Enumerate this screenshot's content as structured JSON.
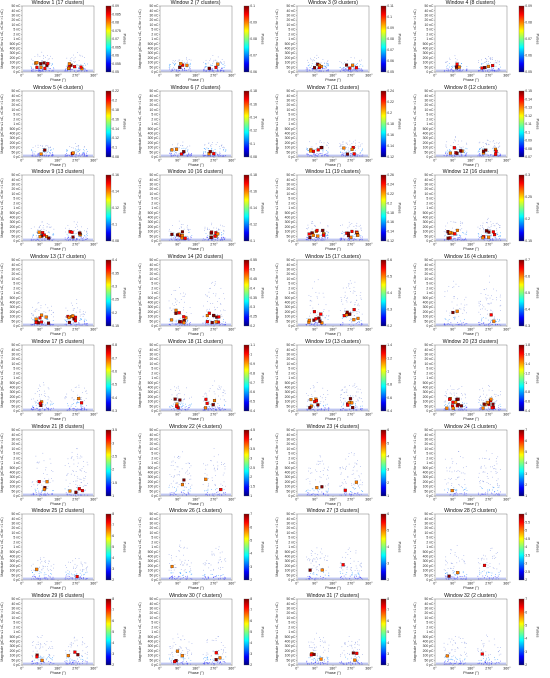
{
  "chart_data": {
    "type": "scatter",
    "layout": {
      "rows": 8,
      "cols": 4
    },
    "xlabel": "Phase (°)",
    "ylabel": "Magnitude (pC for ≤1 nC, nC for >1 nC)",
    "colorbar_label": "Pulses",
    "x_ticks": [
      "0°",
      "90°",
      "180°",
      "270°",
      "360°"
    ],
    "y_ticks": [
      "0 pC",
      "50 pC",
      "100 pC",
      "200 pC",
      "300 pC",
      "400 pC",
      "500 pC",
      "1 nC",
      "2 nC",
      "5 nC",
      "10 nC",
      "20 nC",
      "30 nC",
      "40 nC",
      "50 nC"
    ],
    "windows": [
      {
        "title": "Window 1 (17 clusters)",
        "cbar": [
          "0.05",
          "0.055",
          "0.06",
          "0.065",
          "0.07",
          "0.075",
          "0.08",
          "0.085",
          "0.09"
        ],
        "clusters": 17,
        "spread": 0.3
      },
      {
        "title": "Window 2 (7 clusters)",
        "cbar": [
          "0.06",
          "0.07",
          "0.08",
          "0.09",
          "0.1"
        ],
        "clusters": 7,
        "spread": 0.25
      },
      {
        "title": "Window 3 (9 clusters)",
        "cbar": [
          "0.05",
          "0.06",
          "0.07",
          "0.08",
          "0.09",
          "0.1",
          "0.11"
        ],
        "clusters": 9,
        "spread": 0.25
      },
      {
        "title": "Window 4 (8 clusters)",
        "cbar": [
          "0.05",
          "0.06",
          "0.07",
          "0.08",
          "0.09"
        ],
        "clusters": 8,
        "spread": 0.25
      },
      {
        "title": "Window 5 (4 clusters)",
        "cbar": [
          "0.08",
          "0.1",
          "0.12",
          "0.14",
          "0.16",
          "0.18",
          "0.2",
          "0.22"
        ],
        "clusters": 4,
        "spread": 0.2
      },
      {
        "title": "Window 6 (7 clusters)",
        "cbar": [
          "0.08",
          "0.1",
          "0.12",
          "0.14",
          "0.16",
          "0.18"
        ],
        "clusters": 7,
        "spread": 0.25
      },
      {
        "title": "Window 7 (11 clusters)",
        "cbar": [
          "0.12",
          "0.14",
          "0.16",
          "0.18",
          "0.2",
          "0.22",
          "0.24"
        ],
        "clusters": 11,
        "spread": 0.3
      },
      {
        "title": "Window 8 (12 clusters)",
        "cbar": [
          "0.07",
          "0.08",
          "0.09",
          "0.1",
          "0.11",
          "0.12",
          "0.13",
          "0.14",
          "0.15"
        ],
        "clusters": 12,
        "spread": 0.3
      },
      {
        "title": "Window 9 (13 clusters)",
        "cbar": [
          "0.08",
          "0.1",
          "0.12",
          "0.14",
          "0.16"
        ],
        "clusters": 13,
        "spread": 0.3
      },
      {
        "title": "Window 10 (16 clusters)",
        "cbar": [
          "0.1",
          "0.12",
          "0.14",
          "0.16",
          "0.18"
        ],
        "clusters": 16,
        "spread": 0.3
      },
      {
        "title": "Window 11 (19 clusters)",
        "cbar": [
          "0.12",
          "0.14",
          "0.16",
          "0.18",
          "0.2",
          "0.22",
          "0.24",
          "0.26"
        ],
        "clusters": 19,
        "spread": 0.35
      },
      {
        "title": "Window 12 (16 clusters)",
        "cbar": [
          "0.15",
          "0.2",
          "0.25",
          "0.3"
        ],
        "clusters": 16,
        "spread": 0.35
      },
      {
        "title": "Window 13 (17 clusters)",
        "cbar": [
          "0.15",
          "0.2",
          "0.25",
          "0.3",
          "0.35",
          "0.4"
        ],
        "clusters": 17,
        "spread": 0.4
      },
      {
        "title": "Window 14 (20 clusters)",
        "cbar": [
          "0.2",
          "0.25",
          "0.3",
          "0.35",
          "0.4",
          "0.45",
          "0.5",
          "0.55"
        ],
        "clusters": 20,
        "spread": 0.7
      },
      {
        "title": "Window 15 (17 clusters)",
        "cbar": [
          "0.2",
          "0.3",
          "0.4",
          "0.5",
          "0.6"
        ],
        "clusters": 17,
        "spread": 0.75
      },
      {
        "title": "Window 16 (4 clusters)",
        "cbar": [
          "0.3",
          "0.4",
          "0.5",
          "0.6",
          "0.7"
        ],
        "clusters": 4,
        "spread": 0.75
      },
      {
        "title": "Window 17 (5 clusters)",
        "cbar": [
          "0.3",
          "0.4",
          "0.5",
          "0.6",
          "0.7",
          "0.8"
        ],
        "clusters": 5,
        "spread": 0.45
      },
      {
        "title": "Window 18 (11 clusters)",
        "cbar": [
          "0.4",
          "0.5",
          "0.6",
          "0.7",
          "0.8",
          "0.9",
          "1",
          "1.1"
        ],
        "clusters": 11,
        "spread": 0.45
      },
      {
        "title": "Window 19 (13 clusters)",
        "cbar": [
          "0.4",
          "0.6",
          "0.8",
          "1",
          "1.2",
          "1.4"
        ],
        "clusters": 13,
        "spread": 0.45
      },
      {
        "title": "Window 20 (23 clusters)",
        "cbar": [
          "0.4",
          "0.6",
          "0.8",
          "1",
          "1.2",
          "1.4",
          "1.6",
          "1.8"
        ],
        "clusters": 23,
        "spread": 0.45
      },
      {
        "title": "Window 21 (8 clusters)",
        "cbar": [
          "1",
          "1.5",
          "2",
          "2.5",
          "3",
          "3.5"
        ],
        "clusters": 8,
        "spread": 0.75
      },
      {
        "title": "Window 22 (4 clusters)",
        "cbar": [
          "1",
          "1.5",
          "2",
          "2.5",
          "3",
          "3.5",
          "4",
          "4.5"
        ],
        "clusters": 4,
        "spread": 0.75
      },
      {
        "title": "Window 23 (4 clusters)",
        "cbar": [
          "1",
          "2",
          "3",
          "4",
          "5",
          "6"
        ],
        "clusters": 4,
        "spread": 0.7
      },
      {
        "title": "Window 24 (1 clusters)",
        "cbar": [
          "1",
          "2",
          "3",
          "4",
          "5",
          "6",
          "7"
        ],
        "clusters": 1,
        "spread": 0.8
      },
      {
        "title": "Window 25 (2 clusters)",
        "cbar": [
          "2",
          "3",
          "4",
          "5",
          "6",
          "7",
          "8"
        ],
        "clusters": 2,
        "spread": 0.35
      },
      {
        "title": "Window 26 (1 clusters)",
        "cbar": [
          "2",
          "3",
          "4",
          "5",
          "6",
          "7"
        ],
        "clusters": 1,
        "spread": 0.6
      },
      {
        "title": "Window 27 (3 clusters)",
        "cbar": [
          "2",
          "3",
          "4",
          "5",
          "6"
        ],
        "clusters": 3,
        "spread": 0.55
      },
      {
        "title": "Window 28 (3 clusters)",
        "cbar": [
          "2",
          "2.5",
          "3",
          "3.5",
          "4",
          "4.5",
          "5",
          "5.5",
          "6"
        ],
        "clusters": 3,
        "spread": 0.55
      },
      {
        "title": "Window 29 (6 clusters)",
        "cbar": [
          "2",
          "3",
          "4",
          "5",
          "6",
          "7",
          "8"
        ],
        "clusters": 6,
        "spread": 0.5
      },
      {
        "title": "Window 30 (7 clusters)",
        "cbar": [
          "2",
          "3",
          "4",
          "5",
          "6",
          "7",
          "8"
        ],
        "clusters": 7,
        "spread": 0.5
      },
      {
        "title": "Window 31 (7 clusters)",
        "cbar": [
          "2",
          "3",
          "4",
          "5",
          "6",
          "7",
          "8"
        ],
        "clusters": 7,
        "spread": 0.5
      },
      {
        "title": "Window 32 (2 clusters)",
        "cbar": [
          "2",
          "3",
          "4",
          "5",
          "6",
          "7"
        ],
        "clusters": 2,
        "spread": 0.5
      }
    ]
  }
}
